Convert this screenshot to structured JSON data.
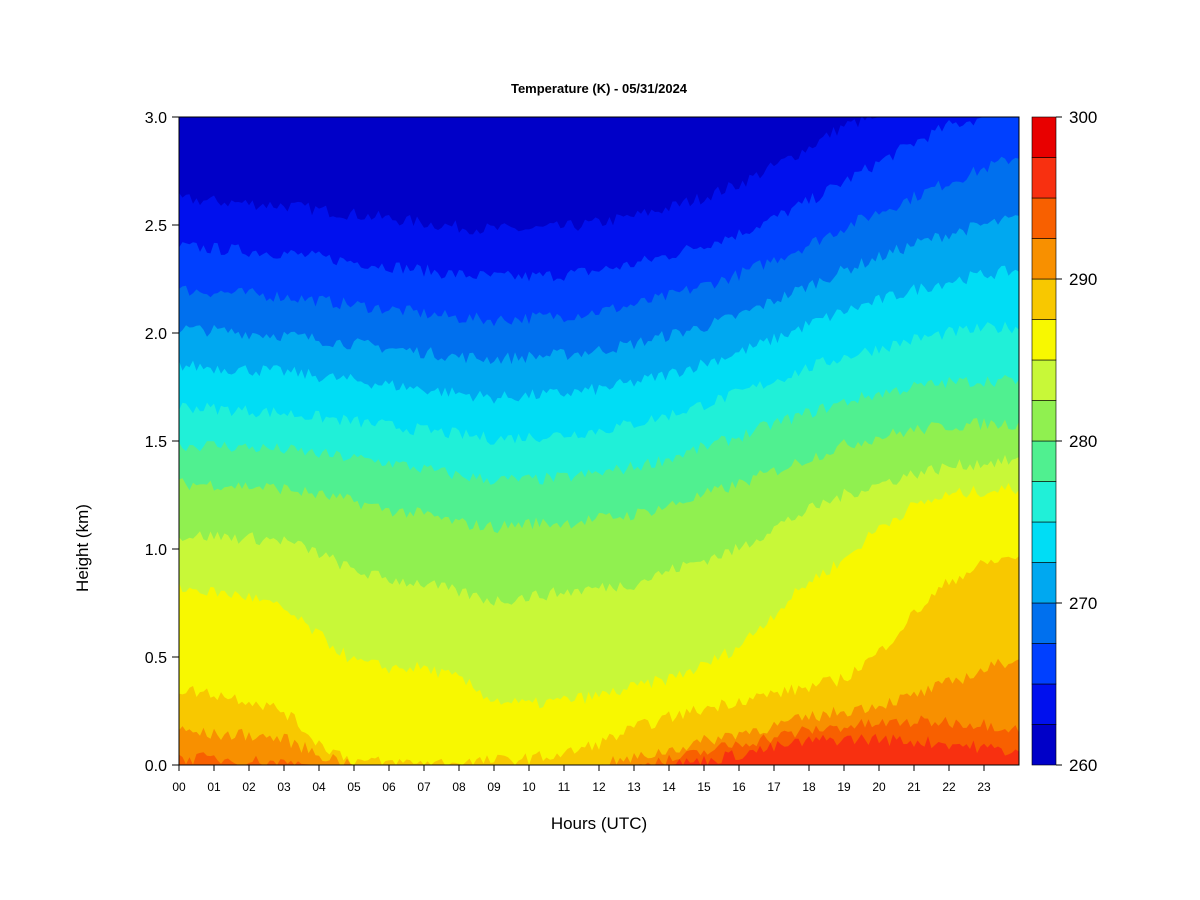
{
  "chart_data": {
    "type": "heatmap",
    "title": "Temperature (K) - 05/31/2024",
    "xlabel": "Hours (UTC)",
    "ylabel": "Height (km)",
    "x_ticks": [
      "00",
      "01",
      "02",
      "03",
      "04",
      "05",
      "06",
      "07",
      "08",
      "09",
      "10",
      "11",
      "12",
      "13",
      "14",
      "15",
      "16",
      "17",
      "18",
      "19",
      "20",
      "21",
      "22",
      "23"
    ],
    "xlim": [
      0,
      24
    ],
    "y_ticks": [
      "0.0",
      "0.5",
      "1.0",
      "1.5",
      "2.0",
      "2.5",
      "3.0"
    ],
    "ylim": [
      0,
      3
    ],
    "colorbar": {
      "ticks": [
        "260",
        "270",
        "280",
        "290",
        "300"
      ],
      "range": [
        260,
        300
      ],
      "step": 2.5,
      "colors": [
        "#00008B",
        "#0000C8",
        "#0010EE",
        "#0040FF",
        "#0070EE",
        "#00A8F0",
        "#00DDF5",
        "#20F0D8",
        "#50F090",
        "#90F050",
        "#C8F838",
        "#F8F800",
        "#F8C800",
        "#F89000",
        "#F86000",
        "#F83010",
        "#E80000",
        "#C00000",
        "#800000"
      ]
    },
    "layers_note": null,
    "isotherms": [
      {
        "value": 297.5,
        "heights_km": [
          0,
          0,
          0,
          0,
          0,
          0,
          0,
          0,
          0,
          0,
          0,
          0,
          0,
          0,
          0,
          0.02,
          0.05,
          0.08,
          0.11,
          0.12,
          0.12,
          0.11,
          0.1,
          0.08,
          0.06
        ]
      },
      {
        "value": 295,
        "heights_km": [
          0.03,
          0.03,
          0.02,
          0.01,
          0,
          0,
          0,
          0,
          0,
          0,
          0,
          0,
          0,
          0,
          0.02,
          0.06,
          0.1,
          0.13,
          0.16,
          0.18,
          0.19,
          0.2,
          0.2,
          0.19,
          0.17
        ]
      },
      {
        "value": 292.5,
        "heights_km": [
          0.16,
          0.14,
          0.14,
          0.12,
          0.05,
          0,
          0,
          0,
          0,
          0,
          0,
          0,
          0,
          0.03,
          0.07,
          0.11,
          0.15,
          0.18,
          0.22,
          0.25,
          0.28,
          0.32,
          0.38,
          0.44,
          0.5
        ]
      },
      {
        "value": 290,
        "heights_km": [
          0.35,
          0.33,
          0.3,
          0.25,
          0.1,
          0.02,
          0.01,
          0.01,
          0.01,
          0.02,
          0.03,
          0.05,
          0.1,
          0.17,
          0.22,
          0.26,
          0.3,
          0.33,
          0.36,
          0.4,
          0.52,
          0.7,
          0.85,
          0.93,
          0.97
        ]
      },
      {
        "value": 287.5,
        "heights_km": [
          0.82,
          0.8,
          0.78,
          0.72,
          0.6,
          0.48,
          0.45,
          0.45,
          0.4,
          0.3,
          0.28,
          0.3,
          0.32,
          0.36,
          0.4,
          0.46,
          0.55,
          0.7,
          0.85,
          0.95,
          1.1,
          1.2,
          1.25,
          1.27,
          1.28
        ]
      },
      {
        "value": 285,
        "heights_km": [
          1.06,
          1.06,
          1.05,
          1.04,
          0.98,
          0.9,
          0.86,
          0.84,
          0.8,
          0.76,
          0.78,
          0.8,
          0.82,
          0.84,
          0.9,
          0.95,
          1.0,
          1.1,
          1.18,
          1.25,
          1.3,
          1.35,
          1.38,
          1.4,
          1.41
        ]
      },
      {
        "value": 282.5,
        "heights_km": [
          1.3,
          1.3,
          1.29,
          1.28,
          1.25,
          1.22,
          1.18,
          1.16,
          1.12,
          1.1,
          1.12,
          1.12,
          1.14,
          1.16,
          1.2,
          1.25,
          1.3,
          1.36,
          1.42,
          1.48,
          1.52,
          1.55,
          1.57,
          1.58,
          1.58
        ]
      },
      {
        "value": 280,
        "heights_km": [
          1.48,
          1.48,
          1.47,
          1.46,
          1.44,
          1.42,
          1.4,
          1.37,
          1.34,
          1.32,
          1.32,
          1.33,
          1.35,
          1.38,
          1.42,
          1.47,
          1.52,
          1.58,
          1.63,
          1.68,
          1.72,
          1.75,
          1.77,
          1.78,
          1.78
        ]
      },
      {
        "value": 277.5,
        "heights_km": [
          1.66,
          1.65,
          1.64,
          1.63,
          1.61,
          1.59,
          1.57,
          1.55,
          1.53,
          1.51,
          1.52,
          1.53,
          1.55,
          1.58,
          1.62,
          1.67,
          1.72,
          1.78,
          1.84,
          1.89,
          1.93,
          1.97,
          2.0,
          2.02,
          2.03
        ]
      },
      {
        "value": 275,
        "heights_km": [
          1.85,
          1.84,
          1.83,
          1.82,
          1.8,
          1.78,
          1.76,
          1.74,
          1.72,
          1.7,
          1.71,
          1.72,
          1.74,
          1.77,
          1.81,
          1.86,
          1.91,
          1.97,
          2.04,
          2.1,
          2.15,
          2.2,
          2.24,
          2.27,
          2.29
        ]
      },
      {
        "value": 272.5,
        "heights_km": [
          2.02,
          2.01,
          2.0,
          1.99,
          1.97,
          1.95,
          1.93,
          1.91,
          1.89,
          1.88,
          1.89,
          1.9,
          1.92,
          1.95,
          1.99,
          2.03,
          2.08,
          2.15,
          2.22,
          2.29,
          2.35,
          2.41,
          2.46,
          2.5,
          2.53
        ]
      },
      {
        "value": 270,
        "heights_km": [
          2.2,
          2.19,
          2.18,
          2.17,
          2.15,
          2.13,
          2.11,
          2.09,
          2.07,
          2.06,
          2.07,
          2.08,
          2.1,
          2.13,
          2.17,
          2.22,
          2.27,
          2.34,
          2.41,
          2.49,
          2.56,
          2.63,
          2.7,
          2.76,
          2.82
        ]
      },
      {
        "value": 267.5,
        "heights_km": [
          2.4,
          2.39,
          2.38,
          2.37,
          2.35,
          2.33,
          2.31,
          2.29,
          2.27,
          2.26,
          2.26,
          2.27,
          2.29,
          2.32,
          2.36,
          2.41,
          2.46,
          2.53,
          2.61,
          2.7,
          2.79,
          2.88,
          2.96,
          3.0,
          3.0
        ]
      },
      {
        "value": 265,
        "heights_km": [
          2.62,
          2.61,
          2.6,
          2.59,
          2.57,
          2.55,
          2.53,
          2.51,
          2.49,
          2.48,
          2.48,
          2.49,
          2.51,
          2.54,
          2.58,
          2.63,
          2.69,
          2.77,
          2.86,
          2.96,
          3.0,
          3.0,
          3.0,
          3.0,
          3.0
        ]
      },
      {
        "value": 262.5,
        "heights_km": [
          2.86,
          2.85,
          2.84,
          2.83,
          2.81,
          2.79,
          2.77,
          2.75,
          2.74,
          2.73,
          2.73,
          2.74,
          2.76,
          2.8,
          2.85,
          2.91,
          2.97,
          3.0,
          3.0,
          3.0,
          3.0,
          3.0,
          3.0,
          3.0,
          3.0
        ]
      }
    ]
  }
}
